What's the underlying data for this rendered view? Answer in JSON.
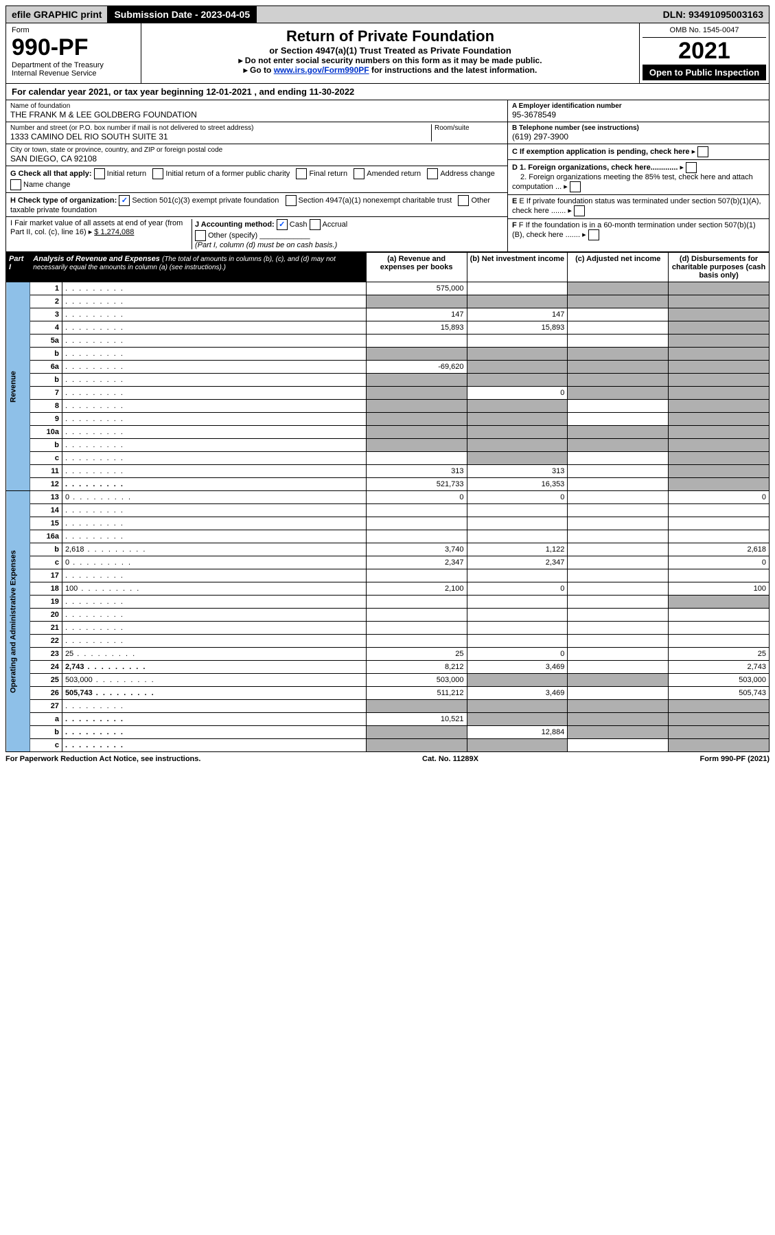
{
  "topbar": {
    "efile": "efile GRAPHIC print",
    "submission_label": "Submission Date - 2023-04-05",
    "dln": "DLN: 93491095003163"
  },
  "header": {
    "form_label": "Form",
    "form_no": "990-PF",
    "dept": "Department of the Treasury\nInternal Revenue Service",
    "title": "Return of Private Foundation",
    "subtitle": "or Section 4947(a)(1) Trust Treated as Private Foundation",
    "instr1": "▸ Do not enter social security numbers on this form as it may be made public.",
    "instr2_pre": "▸ Go to ",
    "instr2_link": "www.irs.gov/Form990PF",
    "instr2_post": " for instructions and the latest information.",
    "omb": "OMB No. 1545-0047",
    "year": "2021",
    "open": "Open to Public Inspection"
  },
  "cal_year": "For calendar year 2021, or tax year beginning 12-01-2021                     , and ending 11-30-2022",
  "foundation": {
    "name_label": "Name of foundation",
    "name": "THE FRANK M & LEE GOLDBERG FOUNDATION",
    "addr_label": "Number and street (or P.O. box number if mail is not delivered to street address)",
    "addr": "1333 CAMINO DEL RIO SOUTH SUITE 31",
    "room_label": "Room/suite",
    "city_label": "City or town, state or province, country, and ZIP or foreign postal code",
    "city": "SAN DIEGO, CA  92108"
  },
  "ein": {
    "label": "A Employer identification number",
    "value": "95-3678549"
  },
  "phone": {
    "label": "B Telephone number (see instructions)",
    "value": "(619) 297-3900"
  },
  "right_c": "C If exemption application is pending, check here",
  "right_d1": "D 1. Foreign organizations, check here.............",
  "right_d2": "2. Foreign organizations meeting the 85% test, check here and attach computation ...",
  "right_e": "E If private foundation status was terminated under section 507(b)(1)(A), check here .......",
  "right_f": "F If the foundation is in a 60-month termination under section 507(b)(1)(B), check here .......",
  "g_label": "G Check all that apply:",
  "g_opts": [
    "Initial return",
    "Initial return of a former public charity",
    "Final return",
    "Amended return",
    "Address change",
    "Name change"
  ],
  "h_label": "H Check type of organization:",
  "h_opts": [
    "Section 501(c)(3) exempt private foundation",
    "Section 4947(a)(1) nonexempt charitable trust",
    "Other taxable private foundation"
  ],
  "i_label": "I Fair market value of all assets at end of year (from Part II, col. (c), line 16)",
  "i_value": "$  1,274,088",
  "j_label": "J Accounting method:",
  "j_cash": "Cash",
  "j_accrual": "Accrual",
  "j_other": "Other (specify)",
  "j_note": "(Part I, column (d) must be on cash basis.)",
  "part1": {
    "label": "Part I",
    "title": "Analysis of Revenue and Expenses",
    "note": "(The total of amounts in columns (b), (c), and (d) may not necessarily equal the amounts in column (a) (see instructions).)"
  },
  "cols": {
    "a": "(a) Revenue and expenses per books",
    "b": "(b) Net investment income",
    "c": "(c) Adjusted net income",
    "d": "(d) Disbursements for charitable purposes (cash basis only)"
  },
  "side": {
    "revenue": "Revenue",
    "expenses": "Operating and Administrative Expenses"
  },
  "rows": [
    {
      "n": "1",
      "d": "",
      "a": "575,000",
      "b": "",
      "c": "",
      "shade_c": true,
      "shade_d": true
    },
    {
      "n": "2",
      "d": "",
      "a": "",
      "b": "",
      "c": "",
      "shade_a": true,
      "shade_b": true,
      "shade_c": true,
      "shade_d": true
    },
    {
      "n": "3",
      "d": "",
      "a": "147",
      "b": "147",
      "c": "",
      "shade_d": true
    },
    {
      "n": "4",
      "d": "",
      "a": "15,893",
      "b": "15,893",
      "c": "",
      "shade_d": true
    },
    {
      "n": "5a",
      "d": "",
      "a": "",
      "b": "",
      "c": "",
      "shade_d": true
    },
    {
      "n": "b",
      "d": "",
      "a": "",
      "b": "",
      "c": "",
      "shade_a": true,
      "shade_b": true,
      "shade_c": true,
      "shade_d": true
    },
    {
      "n": "6a",
      "d": "",
      "a": "-69,620",
      "b": "",
      "c": "",
      "shade_b": true,
      "shade_c": true,
      "shade_d": true
    },
    {
      "n": "b",
      "d": "",
      "a": "",
      "b": "",
      "c": "",
      "shade_a": true,
      "shade_b": true,
      "shade_c": true,
      "shade_d": true
    },
    {
      "n": "7",
      "d": "",
      "a": "",
      "b": "0",
      "c": "",
      "shade_a": true,
      "shade_c": true,
      "shade_d": true
    },
    {
      "n": "8",
      "d": "",
      "a": "",
      "b": "",
      "c": "",
      "shade_a": true,
      "shade_b": true,
      "shade_d": true
    },
    {
      "n": "9",
      "d": "",
      "a": "",
      "b": "",
      "c": "",
      "shade_a": true,
      "shade_b": true,
      "shade_d": true
    },
    {
      "n": "10a",
      "d": "",
      "a": "",
      "b": "",
      "c": "",
      "shade_a": true,
      "shade_b": true,
      "shade_c": true,
      "shade_d": true
    },
    {
      "n": "b",
      "d": "",
      "a": "",
      "b": "",
      "c": "",
      "shade_a": true,
      "shade_b": true,
      "shade_c": true,
      "shade_d": true
    },
    {
      "n": "c",
      "d": "",
      "a": "",
      "b": "",
      "c": "",
      "shade_b": true,
      "shade_d": true
    },
    {
      "n": "11",
      "d": "",
      "a": "313",
      "b": "313",
      "c": "",
      "shade_d": true
    },
    {
      "n": "12",
      "d": "",
      "a": "521,733",
      "b": "16,353",
      "c": "",
      "bold": true,
      "shade_d": true
    },
    {
      "n": "13",
      "d": "0",
      "a": "0",
      "b": "0",
      "c": ""
    },
    {
      "n": "14",
      "d": "",
      "a": "",
      "b": "",
      "c": ""
    },
    {
      "n": "15",
      "d": "",
      "a": "",
      "b": "",
      "c": ""
    },
    {
      "n": "16a",
      "d": "",
      "a": "",
      "b": "",
      "c": ""
    },
    {
      "n": "b",
      "d": "2,618",
      "a": "3,740",
      "b": "1,122",
      "c": ""
    },
    {
      "n": "c",
      "d": "0",
      "a": "2,347",
      "b": "2,347",
      "c": ""
    },
    {
      "n": "17",
      "d": "",
      "a": "",
      "b": "",
      "c": ""
    },
    {
      "n": "18",
      "d": "100",
      "a": "2,100",
      "b": "0",
      "c": ""
    },
    {
      "n": "19",
      "d": "",
      "a": "",
      "b": "",
      "c": "",
      "shade_d": true
    },
    {
      "n": "20",
      "d": "",
      "a": "",
      "b": "",
      "c": ""
    },
    {
      "n": "21",
      "d": "",
      "a": "",
      "b": "",
      "c": ""
    },
    {
      "n": "22",
      "d": "",
      "a": "",
      "b": "",
      "c": ""
    },
    {
      "n": "23",
      "d": "25",
      "a": "25",
      "b": "0",
      "c": ""
    },
    {
      "n": "24",
      "d": "2,743",
      "a": "8,212",
      "b": "3,469",
      "c": "",
      "bold": true
    },
    {
      "n": "25",
      "d": "503,000",
      "a": "503,000",
      "b": "",
      "c": "",
      "shade_b": true,
      "shade_c": true
    },
    {
      "n": "26",
      "d": "505,743",
      "a": "511,212",
      "b": "3,469",
      "c": "",
      "bold": true
    },
    {
      "n": "27",
      "d": "",
      "a": "",
      "b": "",
      "c": "",
      "shade_a": true,
      "shade_b": true,
      "shade_c": true,
      "shade_d": true
    },
    {
      "n": "a",
      "d": "",
      "a": "10,521",
      "b": "",
      "c": "",
      "bold": true,
      "shade_b": true,
      "shade_c": true,
      "shade_d": true
    },
    {
      "n": "b",
      "d": "",
      "a": "",
      "b": "12,884",
      "c": "",
      "bold": true,
      "shade_a": true,
      "shade_c": true,
      "shade_d": true
    },
    {
      "n": "c",
      "d": "",
      "a": "",
      "b": "",
      "c": "",
      "bold": true,
      "shade_a": true,
      "shade_b": true,
      "shade_d": true
    }
  ],
  "footer": {
    "left": "For Paperwork Reduction Act Notice, see instructions.",
    "mid": "Cat. No. 11289X",
    "right": "Form 990-PF (2021)"
  }
}
